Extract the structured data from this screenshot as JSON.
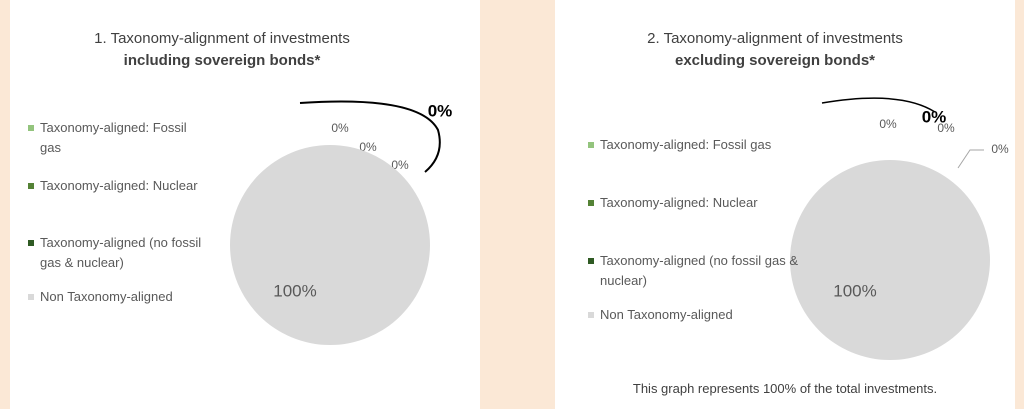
{
  "chart_data": [
    {
      "type": "pie",
      "title": "1. Taxonomy-alignment of investments",
      "subtitle": "including sovereign bonds*",
      "categories": [
        "Taxonomy-aligned: Fossil gas",
        "Taxonomy-aligned: Nuclear",
        "Taxonomy-aligned (no fossil gas & nuclear)",
        "Non Taxonomy-aligned"
      ],
      "values": [
        0,
        0,
        0,
        100
      ],
      "value_labels": [
        "0%",
        "0%",
        "0%",
        "100%"
      ],
      "colors": [
        "#93c47d",
        "#548235",
        "#2f5a23",
        "#d9d9d9"
      ],
      "annotation": "0%"
    },
    {
      "type": "pie",
      "title": "2. Taxonomy-alignment of investments",
      "subtitle": "excluding sovereign bonds*",
      "categories": [
        "Taxonomy-aligned: Fossil gas",
        "Taxonomy-aligned: Nuclear",
        "Taxonomy-aligned (no fossil gas & nuclear)",
        "Non Taxonomy-aligned"
      ],
      "values": [
        0,
        0,
        0,
        100
      ],
      "value_labels": [
        "0%",
        "0%",
        "0%",
        "100%"
      ],
      "colors": [
        "#93c47d",
        "#548235",
        "#2f5a23",
        "#d9d9d9"
      ],
      "annotation": "0%",
      "footnote": "This graph represents 100% of the total investments."
    }
  ]
}
